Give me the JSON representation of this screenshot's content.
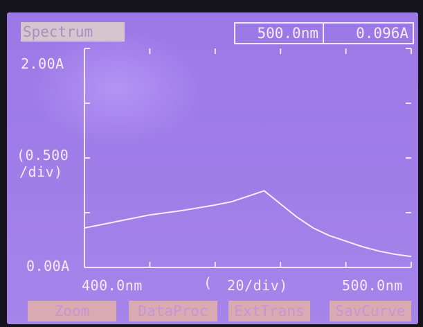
{
  "header": {
    "mode": "Spectrum",
    "wavelength_readout": "500.0nm",
    "absorbance_readout": "0.096A"
  },
  "axes": {
    "y_max_label": "2.00A",
    "y_min_label": "0.00A",
    "y_scale_label_line1": "(0.500",
    "y_scale_label_line2": "/div)",
    "x_min_label": "400.0nm",
    "x_scale_label_open": "(",
    "x_scale_label": "20/div)",
    "x_max_label": "500.0nm"
  },
  "softkeys": {
    "zoom": "Zoom",
    "dataproc": "DataProc",
    "exttrans": "ExtTrans",
    "savcurve": "SavCurve"
  },
  "chart_data": {
    "type": "line",
    "x": [
      400,
      410,
      420,
      430,
      440,
      445,
      450,
      455,
      460,
      465,
      470,
      475,
      480,
      485,
      490,
      495,
      500
    ],
    "y": [
      0.36,
      0.42,
      0.48,
      0.52,
      0.57,
      0.6,
      0.65,
      0.7,
      0.58,
      0.46,
      0.36,
      0.29,
      0.24,
      0.19,
      0.15,
      0.12,
      0.1
    ],
    "xlim": [
      400,
      500
    ],
    "ylim": [
      0,
      2.0
    ],
    "x_tick_step": 20,
    "y_tick_step": 0.5,
    "line_color": "#f6eeff"
  }
}
